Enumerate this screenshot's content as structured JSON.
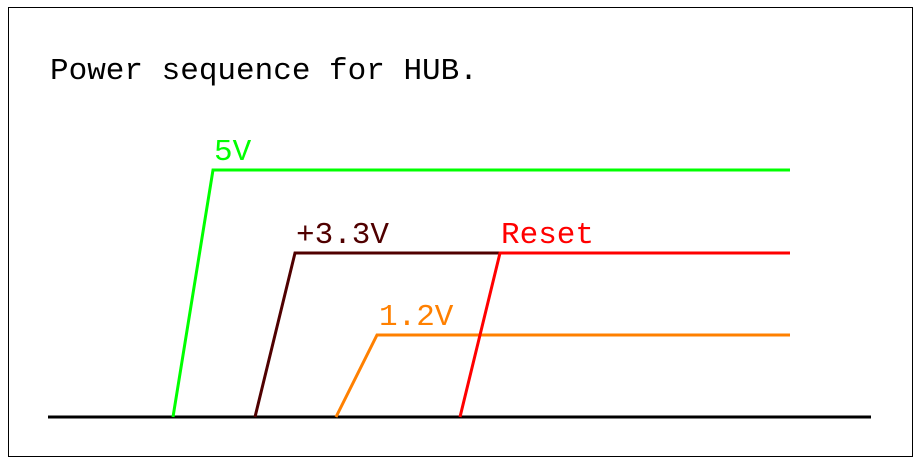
{
  "title": "Power sequence for HUB.",
  "signals": [
    {
      "label": "5V",
      "color": "#00ff00"
    },
    {
      "label": "+3.3V",
      "color": "#500000"
    },
    {
      "label": "Reset",
      "color": "#ff0000"
    },
    {
      "label": "1.2V",
      "color": "#ff8000"
    }
  ],
  "baseline_color": "#000000"
}
